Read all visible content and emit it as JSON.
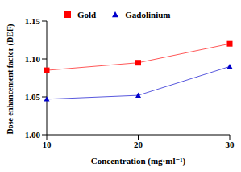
{
  "chart_data": {
    "type": "line",
    "x_label": "Concentration (mg·ml⁻¹)",
    "y_label": "Dose enhancement factor (DEF)",
    "categories": [
      "10",
      "20",
      "30"
    ],
    "series": [
      {
        "name": "Gold",
        "color": "#ff0000",
        "marker": "square",
        "values": [
          1.085,
          1.095,
          1.12
        ]
      },
      {
        "name": "Gadolinium",
        "color": "#0000cc",
        "marker": "triangle",
        "values": [
          1.047,
          1.052,
          1.09
        ]
      }
    ],
    "ylim": [
      1.0,
      1.15
    ],
    "yticks": [
      {
        "value": 1.0,
        "label": "1.00"
      },
      1.05,
      {
        "value": 1.1,
        "label": "1.10"
      },
      1.15
    ],
    "grid": false,
    "legend": "top left"
  }
}
